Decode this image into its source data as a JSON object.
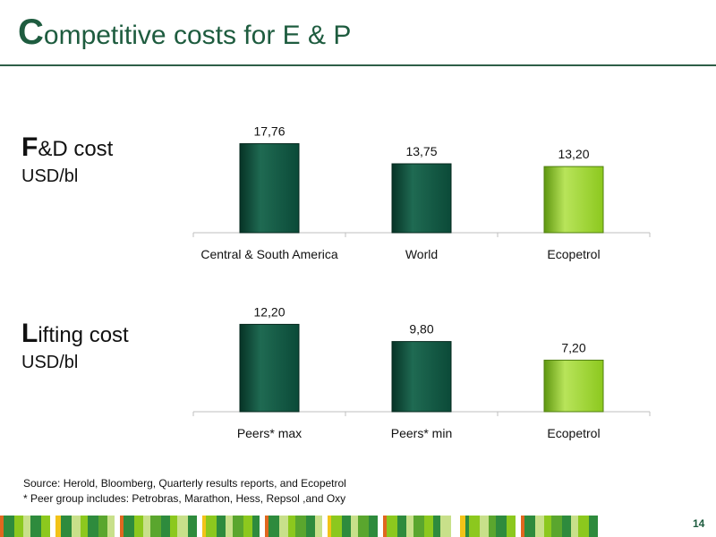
{
  "slide": {
    "title_initial": "C",
    "title_rest": "ompetitive costs for E & P",
    "page_number": "14"
  },
  "labels": {
    "fd": {
      "initial": "F",
      "rest": "&D cost",
      "unit": "USD/bl"
    },
    "lifting": {
      "initial": "L",
      "rest": "ifting cost",
      "unit": "USD/bl"
    }
  },
  "footnotes": {
    "source": "Source: Herold, Bloomberg, Quarterly results reports, and Ecopetrol",
    "peers": "* Peer group includes: Petrobras, Marathon, Hess, Repsol ,and Oxy"
  },
  "colors": {
    "dark_green": "#0b4a38",
    "light_green": "#8cc81e",
    "title_green": "#1e5c3f"
  },
  "chart_data": [
    {
      "type": "bar",
      "categories": [
        "Central & South America",
        "World",
        "Ecopetrol"
      ],
      "values": [
        17.76,
        13.75,
        13.2
      ],
      "value_labels": [
        "17,76",
        "13,75",
        "13,20"
      ],
      "highlight": "Ecopetrol",
      "ylim": [
        0,
        20
      ],
      "grid": false
    },
    {
      "type": "bar",
      "categories": [
        "Peers* max",
        "Peers* min",
        "Ecopetrol"
      ],
      "values": [
        12.2,
        9.8,
        7.2
      ],
      "value_labels": [
        "12,20",
        "9,80",
        "7,20"
      ],
      "highlight": "Ecopetrol",
      "ylim": [
        0,
        14
      ],
      "grid": false
    }
  ]
}
